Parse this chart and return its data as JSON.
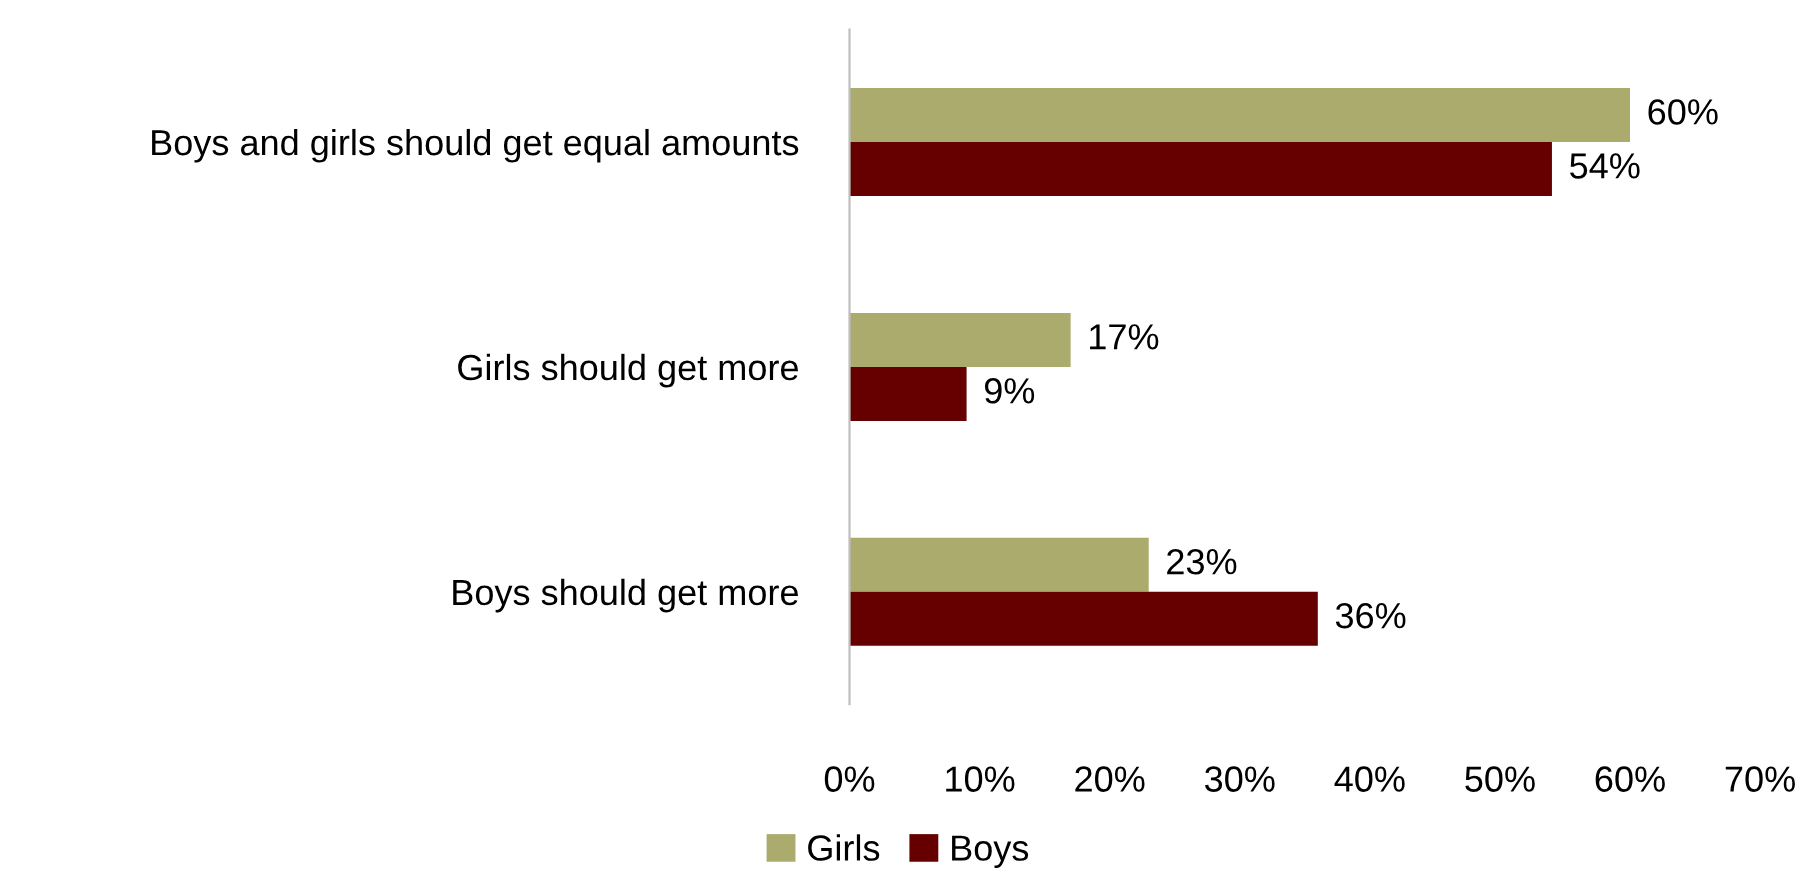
{
  "chart_data": {
    "type": "bar",
    "orientation": "horizontal",
    "categories": [
      "Boys and girls should get equal amounts",
      "Girls should get more",
      "Boys should get more"
    ],
    "series": [
      {
        "name": "Girls",
        "color": "#abab6d",
        "values": [
          60,
          17,
          23
        ],
        "value_labels": [
          "60%",
          "17%",
          "23%"
        ]
      },
      {
        "name": "Boys",
        "color": "#660000",
        "values": [
          54,
          9,
          36
        ],
        "value_labels": [
          "54%",
          "9%",
          "36%"
        ]
      }
    ],
    "xlim": [
      0,
      70
    ],
    "xticks": [
      {
        "value": 0,
        "label": "0%"
      },
      {
        "value": 10,
        "label": "10%"
      },
      {
        "value": 20,
        "label": "20%"
      },
      {
        "value": 30,
        "label": "30%"
      },
      {
        "value": 40,
        "label": "40%"
      },
      {
        "value": 50,
        "label": "50%"
      },
      {
        "value": 60,
        "label": "60%"
      },
      {
        "value": 70,
        "label": "70%"
      }
    ],
    "grid": false,
    "legend": "bottom"
  }
}
